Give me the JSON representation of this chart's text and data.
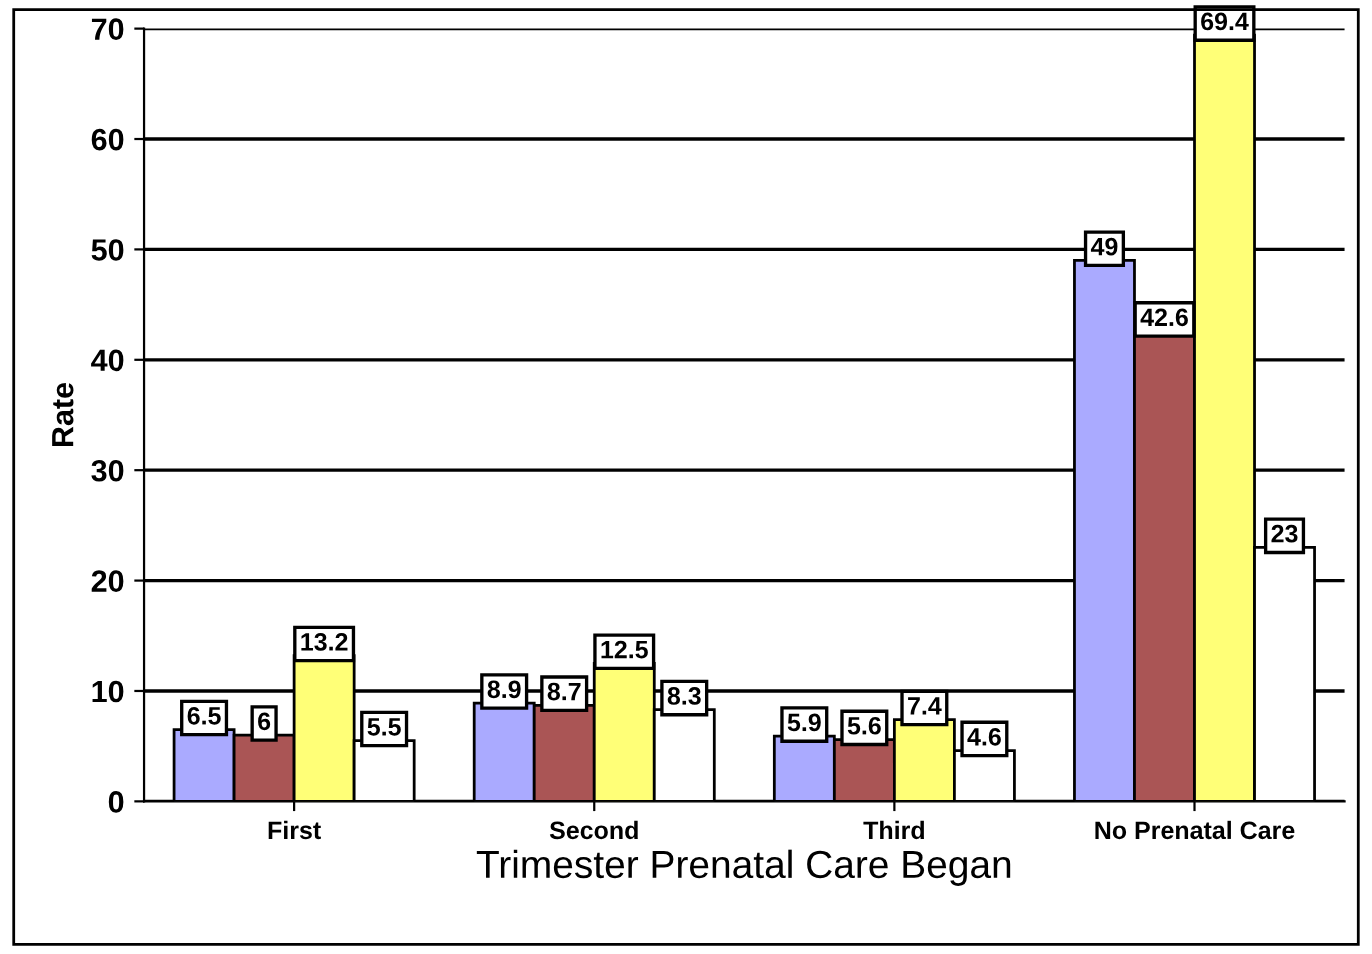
{
  "chart_data": {
    "type": "bar",
    "xlabel": "Trimester Prenatal Care Began",
    "ylabel": "Rate",
    "categories": [
      "First",
      "Second",
      "Third",
      "No Prenatal Care"
    ],
    "series": [
      {
        "color": "#aaaaff",
        "values": [
          6.5,
          8.9,
          5.9,
          49
        ]
      },
      {
        "color": "#aa5555",
        "values": [
          6,
          8.7,
          5.6,
          42.6
        ]
      },
      {
        "color": "#ffff77",
        "values": [
          13.2,
          12.5,
          7.4,
          69.4
        ]
      },
      {
        "color": "#ffffff",
        "values": [
          5.5,
          8.3,
          4.6,
          23
        ]
      }
    ],
    "ylim": [
      0,
      70
    ],
    "yticks": [
      0,
      10,
      20,
      30,
      40,
      50,
      60,
      70
    ],
    "grid": "y",
    "legend": false,
    "data_labels": true
  }
}
